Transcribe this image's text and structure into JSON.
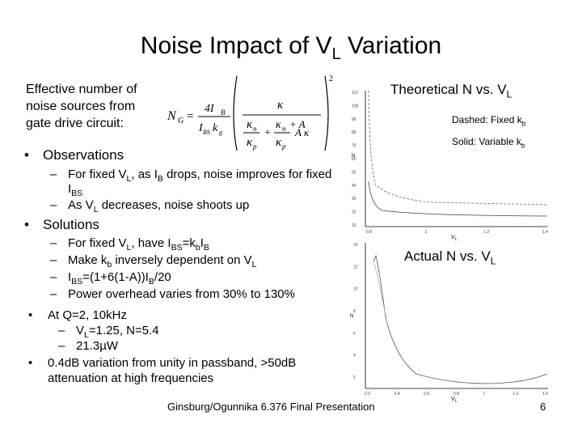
{
  "slide": {
    "title_main": "Noise Impact of V",
    "title_sub": "L",
    "title_end": " Variation",
    "intro_lines": [
      "Effective number of",
      "noise sources from",
      "gate drive circuit:"
    ],
    "equation": {
      "lhs": "N",
      "lhs_sub": "G",
      "eq": "=",
      "frac_num": "4I",
      "frac_num_sub": "B",
      "frac_den": "I",
      "frac_den_sub1": "BS",
      "frac_den_k": "k",
      "frac_den_sub2": "g",
      "kappa": "κ",
      "kappa_n": "κ",
      "kappa_n_sub": "n",
      "plus_A": "+ A",
      "kappa2": "κ",
      "kappa_p": "κ",
      "kappa_p_sub": "p",
      "plus": "+",
      "A_kappa": "A κ",
      "power": "2"
    },
    "observations_title": "Observations",
    "obs_items": [
      {
        "a": "For fixed V",
        "a_sub": "L",
        "b": ", as I",
        "b_sub": "B",
        "c": " drops, noise improves for fixed",
        "line2": "I",
        "line2_sub": "BS"
      },
      {
        "a": "As V",
        "a_sub": "L",
        "b": " decreases, noise shoots up"
      }
    ],
    "solutions_title": "Solutions",
    "sol_items": [
      {
        "a": "For fixed V",
        "a_sub": "L",
        "b": ", have I",
        "b_sub": "BS",
        "c": "=k",
        "c_sub": "b",
        "d": "I",
        "d_sub": "B"
      },
      {
        "a": "Make k",
        "a_sub": "b",
        "b": " inversely dependent on V",
        "b_sub": "L"
      },
      {
        "a": "I",
        "a_sub": "BS",
        "b": "=(1+6(1-A))I",
        "b_sub": "B",
        "c": "/20"
      },
      {
        "a": "Power overhead varies from 30% to 130%"
      }
    ],
    "results": [
      {
        "line": "At Q=2, 10kHz"
      },
      {
        "line": "V",
        "sub": "L",
        "rest": "=1.25, N=5.4",
        "dash": true
      },
      {
        "line": "21.3µW",
        "dash": true
      },
      {
        "line": "0.4dB variation from unity in passband, >50dB"
      },
      {
        "line": "attenuation at high frequencies"
      }
    ],
    "footer": "Ginsburg/Ogunnika 6.376 Final Presentation",
    "page_number": "6",
    "theory_title": "Theoretical N vs. V",
    "theory_title_sub": "L",
    "legend_dashed": "Dashed: Fixed k",
    "legend_dashed_sub": "b",
    "legend_solid": "Solid: Variable k",
    "legend_solid_sub": "b",
    "actual_title": "Actual N vs. V",
    "actual_title_sub": "L",
    "axis_n": "N",
    "axis_vl": "V",
    "axis_vl_sub": "L",
    "theory_yticks": [
      "110",
      "100",
      "90",
      "80",
      "70",
      "60",
      "50",
      "40",
      "30",
      "20",
      "10"
    ],
    "theory_xticks": [
      "0.8",
      "1",
      "1.2",
      "1.4"
    ],
    "actual_yticks": [
      "14",
      "12",
      "10",
      "8",
      "6",
      "4",
      "2"
    ],
    "actual_xticks": [
      "0.2",
      "0.4",
      "0.6",
      "0.8",
      "1",
      "1.2",
      "1.4"
    ]
  }
}
